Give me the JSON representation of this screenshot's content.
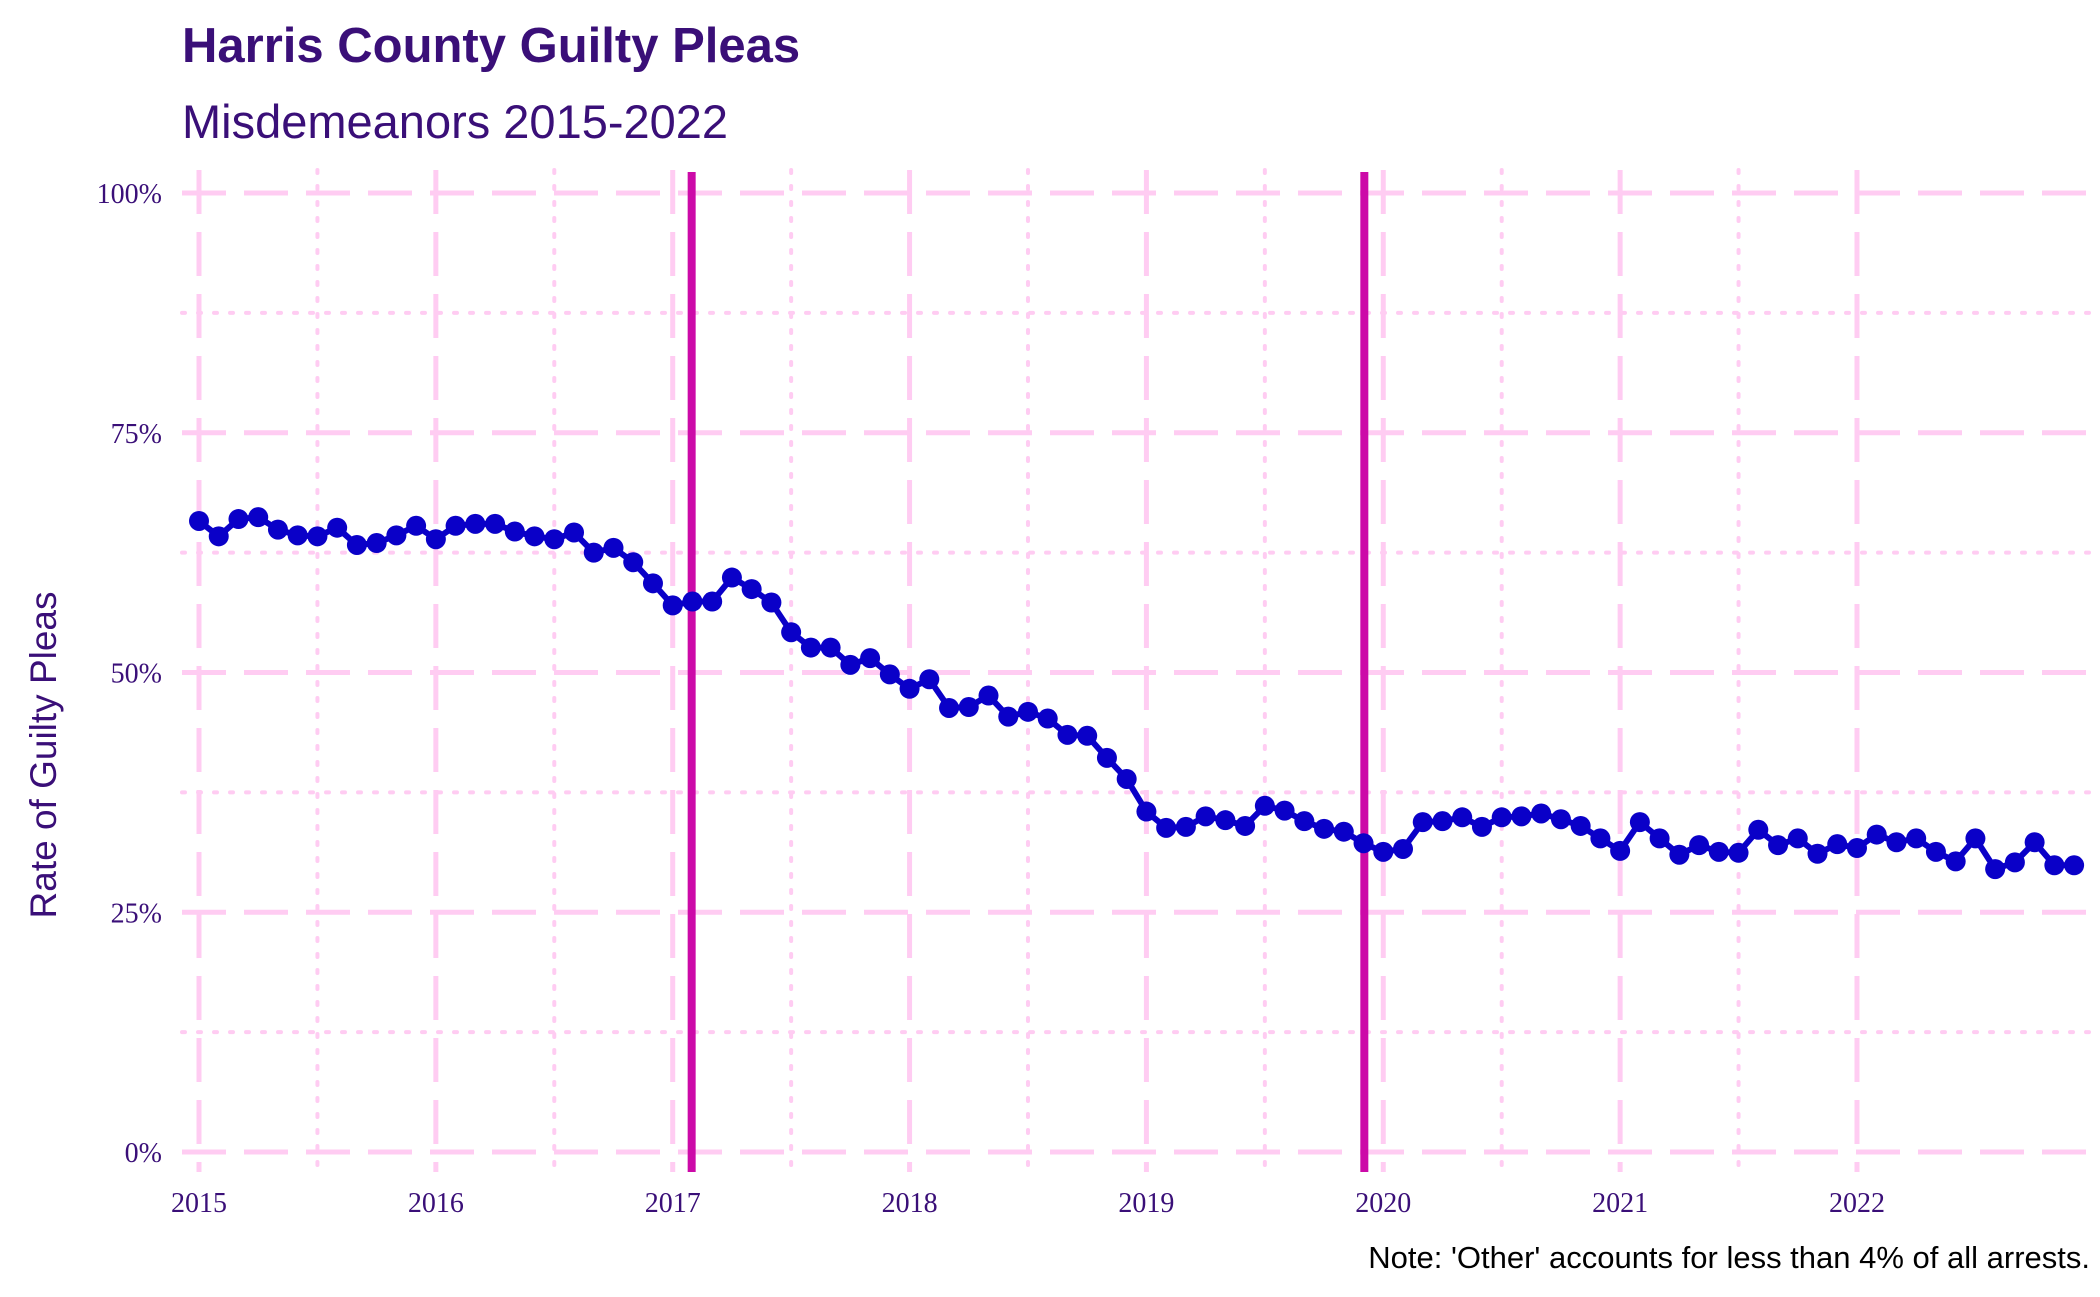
{
  "chart_data": {
    "type": "line",
    "title": "Harris County Guilty Pleas",
    "subtitle": "Misdemeanors 2015-2022",
    "xlabel": "",
    "ylabel": "Rate of Guilty Pleas",
    "caption": "Note: 'Other' accounts for less than 4% of all arrests.",
    "xlim": [
      2015,
      2022.95
    ],
    "ylim": [
      0,
      1
    ],
    "x_ticks": [
      {
        "value": 2015,
        "label": "2015"
      },
      {
        "value": 2016,
        "label": "2016"
      },
      {
        "value": 2017,
        "label": "2017"
      },
      {
        "value": 2018,
        "label": "2018"
      },
      {
        "value": 2019,
        "label": "2019"
      },
      {
        "value": 2020,
        "label": "2020"
      },
      {
        "value": 2021,
        "label": "2021"
      },
      {
        "value": 2022,
        "label": "2022"
      }
    ],
    "y_ticks": [
      {
        "value": 0,
        "label": "0%"
      },
      {
        "value": 0.25,
        "label": "25%"
      },
      {
        "value": 0.5,
        "label": "50%"
      },
      {
        "value": 0.75,
        "label": "75%"
      },
      {
        "value": 1,
        "label": "100%"
      }
    ],
    "grid": true,
    "vlines": [
      2017.08,
      2019.92
    ],
    "colors": {
      "line": "#0a00c8",
      "vline": "#cc0aa8",
      "grid": "#ffccf2",
      "text": "#3a0f78"
    },
    "series": [
      {
        "start_year": 2015,
        "start_month": 1,
        "values": [
          0.658,
          0.642,
          0.66,
          0.662,
          0.649,
          0.643,
          0.642,
          0.651,
          0.633,
          0.635,
          0.643,
          0.653,
          0.639,
          0.653,
          0.655,
          0.655,
          0.647,
          0.642,
          0.639,
          0.646,
          0.625,
          0.63,
          0.615,
          0.593,
          0.57,
          0.574,
          0.574,
          0.599,
          0.587,
          0.573,
          0.542,
          0.526,
          0.526,
          0.508,
          0.515,
          0.498,
          0.483,
          0.493,
          0.463,
          0.464,
          0.476,
          0.454,
          0.459,
          0.452,
          0.435,
          0.434,
          0.411,
          0.389,
          0.355,
          0.338,
          0.339,
          0.35,
          0.346,
          0.34,
          0.361,
          0.356,
          0.345,
          0.337,
          0.334,
          0.322,
          0.313,
          0.316,
          0.344,
          0.345,
          0.349,
          0.339,
          0.349,
          0.35,
          0.353,
          0.347,
          0.34,
          0.327,
          0.314,
          0.344,
          0.327,
          0.31,
          0.32,
          0.313,
          0.312,
          0.336,
          0.32,
          0.327,
          0.311,
          0.321,
          0.317,
          0.331,
          0.323,
          0.327,
          0.313,
          0.303,
          0.327,
          0.295,
          0.302,
          0.323,
          0.299,
          0.299
        ]
      }
    ]
  }
}
